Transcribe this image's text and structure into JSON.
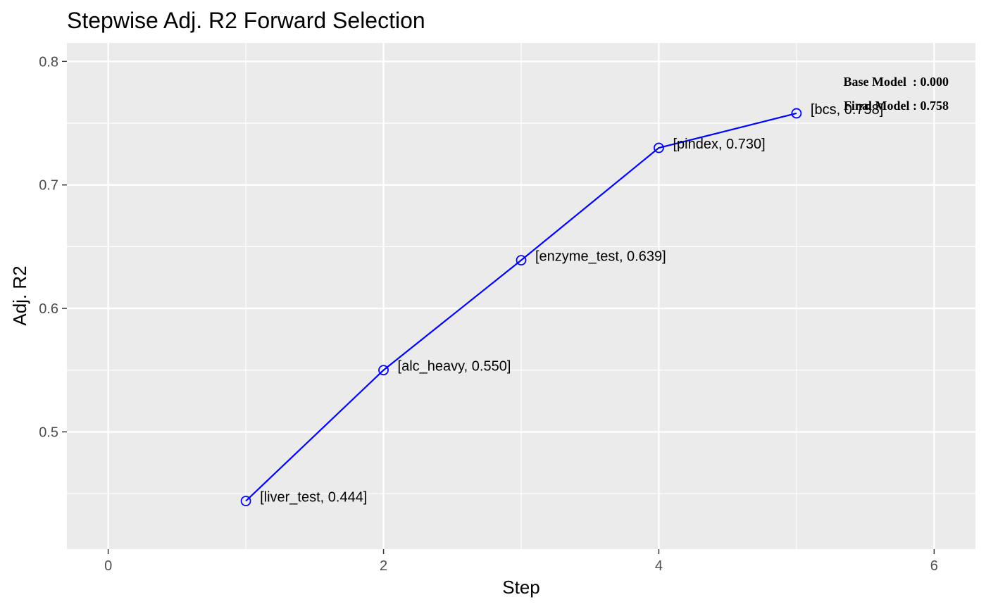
{
  "chart_data": {
    "type": "line",
    "title": "Stepwise Adj. R2 Forward Selection",
    "xlabel": "Step",
    "ylabel": "Adj. R2",
    "xlim": [
      -0.3,
      6.3
    ],
    "ylim": [
      0.405,
      0.815
    ],
    "x_ticks": [
      0,
      2,
      4,
      6
    ],
    "x_tick_labels": [
      "0",
      "2",
      "4",
      "6"
    ],
    "y_ticks": [
      0.5,
      0.6,
      0.7,
      0.8
    ],
    "y_tick_labels": [
      "0.5",
      "0.6",
      "0.7",
      "0.8"
    ],
    "x_minor_ticks": [
      1,
      3,
      5
    ],
    "y_minor_ticks": [
      0.45,
      0.55,
      0.65,
      0.75
    ],
    "grid": true,
    "line_color": "#0000FF",
    "panel_color": "#EBEBEB",
    "points": [
      {
        "x": 1,
        "y": 0.444,
        "label": "[liver_test, 0.444]"
      },
      {
        "x": 2,
        "y": 0.55,
        "label": "[alc_heavy, 0.550]"
      },
      {
        "x": 3,
        "y": 0.639,
        "label": "[enzyme_test, 0.639]"
      },
      {
        "x": 4,
        "y": 0.73,
        "label": "[pindex, 0.730]"
      },
      {
        "x": 5,
        "y": 0.758,
        "label": "[bcs, 0.758]"
      }
    ],
    "annotations": [
      {
        "text": "Base Model  : 0.000"
      },
      {
        "text": "Final Model : 0.758"
      }
    ]
  }
}
